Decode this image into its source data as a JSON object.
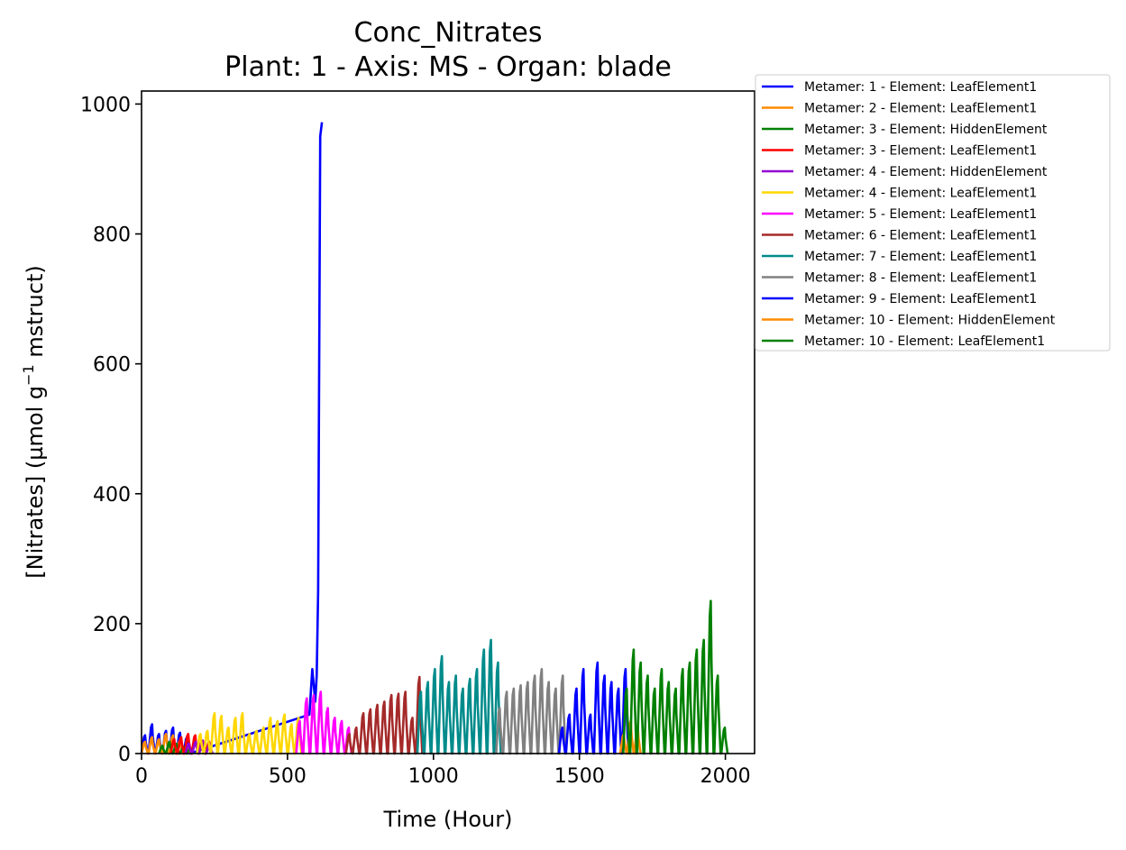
{
  "chart_data": {
    "type": "line",
    "title": "Conc_Nitrates",
    "subtitle": "Plant: 1 - Axis: MS - Organ: blade",
    "xlabel": "Time (Hour)",
    "ylabel_prefix": "[Nitrates] (µmol g",
    "ylabel_sup": "−1",
    "ylabel_suffix": " mstruct)",
    "xlim": [
      0,
      2100
    ],
    "ylim": [
      0,
      1020
    ],
    "xticks": [
      0,
      500,
      1000,
      1500,
      2000
    ],
    "xtick_labels": [
      "0",
      "500",
      "1000",
      "1500",
      "2000"
    ],
    "yticks": [
      0,
      200,
      400,
      600,
      800,
      1000
    ],
    "ytick_labels": [
      "0",
      "200",
      "400",
      "600",
      "800",
      "1000"
    ],
    "grid": false,
    "legend_position": "outside right, top",
    "series": [
      {
        "name": "Metamer: 1 - Element: LeafElement1",
        "color": "#0000ff",
        "start": 0,
        "end": 160,
        "period": 24,
        "peaks": [
          28,
          45,
          30,
          35,
          40,
          32,
          25
        ],
        "extra": [
          [
            575,
            60
          ],
          [
            585,
            130
          ],
          [
            595,
            80
          ],
          [
            600,
            120
          ],
          [
            605,
            250
          ],
          [
            612,
            950
          ],
          [
            618,
            972
          ]
        ]
      },
      {
        "name": "Metamer: 2 - Element: LeafElement1",
        "color": "#ff8c00",
        "start": 0,
        "end": 160,
        "period": 24,
        "peaks": [
          18,
          25,
          22,
          30,
          28,
          20,
          12
        ]
      },
      {
        "name": "Metamer: 3 - Element: HiddenElement",
        "color": "#008000",
        "start": 60,
        "end": 170,
        "period": 24,
        "peaks": [
          12,
          18,
          15,
          10,
          8
        ]
      },
      {
        "name": "Metamer: 3 - Element: LeafElement1",
        "color": "#ff0000",
        "start": 100,
        "end": 230,
        "period": 24,
        "peaks": [
          22,
          25,
          30,
          28,
          20,
          18
        ]
      },
      {
        "name": "Metamer: 4 - Element: HiddenElement",
        "color": "#9400d3",
        "start": 150,
        "end": 240,
        "period": 24,
        "peaks": [
          15,
          18,
          20,
          14
        ]
      },
      {
        "name": "Metamer: 4 - Element: LeafElement1",
        "color": "#ffd700",
        "start": 190,
        "end": 540,
        "period": 24,
        "peaks": [
          30,
          35,
          62,
          58,
          40,
          55,
          62,
          30,
          35,
          40,
          55,
          50,
          60,
          45,
          55,
          60
        ]
      },
      {
        "name": "Metamer: 5 - Element: LeafElement1",
        "color": "#ff00ff",
        "start": 530,
        "end": 710,
        "period": 24,
        "peaks": [
          50,
          85,
          90,
          95,
          70,
          55,
          50,
          40
        ]
      },
      {
        "name": "Metamer: 6 - Element: LeafElement1",
        "color": "#a52a2a",
        "start": 700,
        "end": 960,
        "period": 24,
        "peaks": [
          30,
          40,
          62,
          68,
          75,
          80,
          90,
          92,
          95,
          55,
          118
        ]
      },
      {
        "name": "Metamer: 7 - Element: LeafElement1",
        "color": "#008b8b",
        "start": 945,
        "end": 1230,
        "period": 24,
        "peaks": [
          95,
          110,
          130,
          150,
          110,
          120,
          100,
          115,
          130,
          160,
          175,
          140
        ]
      },
      {
        "name": "Metamer: 8 - Element: LeafElement1",
        "color": "#808080",
        "start": 1215,
        "end": 1450,
        "period": 24,
        "peaks": [
          70,
          95,
          100,
          105,
          110,
          120,
          130,
          110,
          100,
          120
        ]
      },
      {
        "name": "Metamer: 9 - Element: LeafElement1",
        "color": "#0000ff",
        "start": 1430,
        "end": 1660,
        "period": 24,
        "peaks": [
          40,
          60,
          100,
          130,
          60,
          140,
          120,
          110,
          100,
          130
        ]
      },
      {
        "name": "Metamer: 10 - Element: HiddenElement",
        "color": "#ff8c00",
        "start": 1640,
        "end": 1700,
        "period": 24,
        "peaks": [
          30,
          50,
          40
        ]
      },
      {
        "name": "Metamer: 10 - Element: LeafElement1",
        "color": "#008000",
        "start": 1650,
        "end": 2000,
        "period": 24,
        "peaks": [
          100,
          160,
          140,
          120,
          100,
          130,
          110,
          100,
          130,
          140,
          160,
          175,
          235,
          120,
          40
        ]
      }
    ]
  }
}
